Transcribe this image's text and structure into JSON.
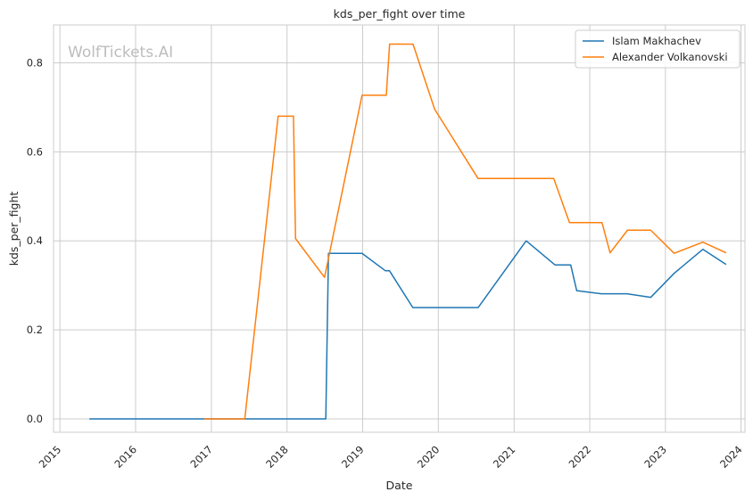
{
  "chart_data": {
    "type": "line",
    "title": "kds_per_fight over time",
    "xlabel": "Date",
    "ylabel": "kds_per_fight",
    "watermark": "WolfTickets.AI",
    "xlim": [
      "2014-12-01",
      "2024-01-20"
    ],
    "ylim": [
      -0.03,
      0.885
    ],
    "x_ticks": [
      "2015",
      "2016",
      "2017",
      "2018",
      "2019",
      "2020",
      "2021",
      "2022",
      "2023",
      "2024"
    ],
    "y_ticks": [
      "0.0",
      "0.2",
      "0.4",
      "0.6",
      "0.8"
    ],
    "grid": true,
    "legend_position": "top-right",
    "series": [
      {
        "name": "Islam Makhachev",
        "color": "#1f77b4",
        "points": [
          [
            "2015-05-23",
            0.0
          ],
          [
            "2016-09-17",
            0.0
          ],
          [
            "2017-09-09",
            0.0
          ],
          [
            "2018-07-07",
            0.0
          ],
          [
            "2018-07-20",
            0.372
          ],
          [
            "2018-12-29",
            0.372
          ],
          [
            "2019-04-20",
            0.333
          ],
          [
            "2019-05-10",
            0.333
          ],
          [
            "2019-08-31",
            0.25
          ],
          [
            "2020-07-11",
            0.25
          ],
          [
            "2021-02-28",
            0.4
          ],
          [
            "2021-07-17",
            0.346
          ],
          [
            "2021-10-01",
            0.346
          ],
          [
            "2021-10-30",
            0.288
          ],
          [
            "2022-02-26",
            0.281
          ],
          [
            "2022-06-30",
            0.281
          ],
          [
            "2022-10-22",
            0.273
          ],
          [
            "2023-02-12",
            0.327
          ],
          [
            "2023-07-01",
            0.381
          ],
          [
            "2023-10-21",
            0.347
          ]
        ]
      },
      {
        "name": "Alexander Volkanovski",
        "color": "#ff7f0e",
        "points": [
          [
            "2016-11-27",
            0.0
          ],
          [
            "2017-06-11",
            0.0
          ],
          [
            "2017-11-19",
            0.68
          ],
          [
            "2018-02-01",
            0.68
          ],
          [
            "2018-02-11",
            0.405
          ],
          [
            "2018-07-01",
            0.318
          ],
          [
            "2018-12-29",
            0.727
          ],
          [
            "2019-04-25",
            0.727
          ],
          [
            "2019-05-11",
            0.842
          ],
          [
            "2019-09-01",
            0.842
          ],
          [
            "2019-12-14",
            0.696
          ],
          [
            "2020-07-11",
            0.54
          ],
          [
            "2021-07-11",
            0.54
          ],
          [
            "2021-09-25",
            0.441
          ],
          [
            "2022-03-01",
            0.441
          ],
          [
            "2022-04-09",
            0.373
          ],
          [
            "2022-07-02",
            0.424
          ],
          [
            "2022-10-22",
            0.424
          ],
          [
            "2023-02-12",
            0.372
          ],
          [
            "2023-07-01",
            0.397
          ],
          [
            "2023-10-21",
            0.373
          ]
        ]
      }
    ]
  }
}
